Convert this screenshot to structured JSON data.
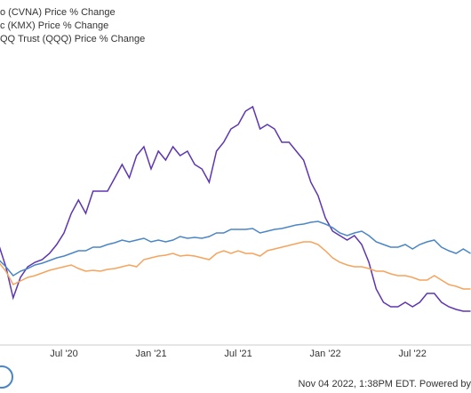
{
  "chart_data": {
    "type": "line",
    "legend": [
      "o (CVNA) Price % Change",
      "c (KMX) Price % Change",
      "QQ Trust (QQQ) Price % Change"
    ],
    "categories": [
      null,
      null,
      null,
      null,
      null,
      null,
      null,
      null,
      null,
      null,
      "Jul '20",
      null,
      null,
      null,
      null,
      null,
      null,
      null,
      null,
      null,
      null,
      null,
      "Jan '21",
      null,
      null,
      null,
      null,
      null,
      null,
      null,
      null,
      null,
      null,
      null,
      "Jul '21",
      null,
      null,
      null,
      null,
      null,
      null,
      null,
      null,
      null,
      null,
      null,
      "Jan '22",
      null,
      null,
      null,
      null,
      null,
      null,
      null,
      null,
      null,
      null,
      null,
      "Jul '22",
      null,
      null,
      null,
      null,
      null,
      null,
      null,
      null
    ],
    "series": [
      {
        "name": "o (CVNA) Price % Change",
        "color": "#5e35b1",
        "values": [
          16,
          13,
          -12,
          -47,
          -24,
          -12,
          -7,
          -4,
          3,
          13,
          26,
          48,
          63,
          48,
          73,
          73,
          73,
          88,
          103,
          88,
          113,
          123,
          98,
          118,
          108,
          123,
          113,
          118,
          103,
          98,
          83,
          118,
          128,
          143,
          148,
          163,
          168,
          143,
          148,
          143,
          128,
          128,
          118,
          108,
          83,
          68,
          43,
          28,
          23,
          18,
          23,
          13,
          -7,
          -37,
          -52,
          -57,
          -57,
          -52,
          -57,
          -52,
          -42,
          -42,
          -52,
          -57,
          -60,
          -62,
          -62
        ]
      },
      {
        "name": "c (KMX) Price % Change",
        "color": "#f5a45d",
        "values": [
          -2,
          -7,
          -17,
          -32,
          -28,
          -24,
          -22,
          -19,
          -16,
          -14,
          -12,
          -10,
          -14,
          -17,
          -16,
          -17,
          -15,
          -14,
          -12,
          -10,
          -12,
          -4,
          -2,
          0,
          1,
          3,
          0,
          1,
          0,
          -2,
          -4,
          3,
          6,
          3,
          6,
          3,
          3,
          0,
          6,
          8,
          10,
          12,
          14,
          16,
          16,
          13,
          6,
          -2,
          -7,
          -10,
          -12,
          -12,
          -14,
          -17,
          -17,
          -20,
          -22,
          -22,
          -24,
          -27,
          -27,
          -22,
          -27,
          -32,
          -34,
          -37,
          -37
        ]
      },
      {
        "name": "QQ Trust (QQQ) Price % Change",
        "color": "#4a86c5",
        "values": [
          -2,
          -4,
          -12,
          -22,
          -17,
          -14,
          -10,
          -8,
          -5,
          -2,
          0,
          3,
          6,
          6,
          10,
          10,
          13,
          15,
          18,
          16,
          18,
          20,
          16,
          18,
          16,
          18,
          22,
          20,
          21,
          20,
          22,
          26,
          26,
          30,
          30,
          30,
          31,
          26,
          28,
          30,
          31,
          33,
          35,
          36,
          38,
          39,
          36,
          32,
          26,
          23,
          26,
          28,
          23,
          16,
          13,
          10,
          10,
          13,
          8,
          13,
          16,
          18,
          10,
          6,
          3,
          8,
          3
        ]
      }
    ],
    "ylim": [
      -100,
      260
    ],
    "footer": "Nov 04 2022, 1:38PM EDT. Powered by"
  }
}
